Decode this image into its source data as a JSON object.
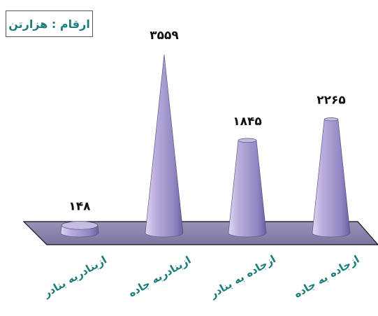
{
  "chart_data": {
    "type": "bar",
    "unit_label": "ارقام : هزارتن",
    "categories": [
      "ازبنادربه بنادر",
      "ازبنادربه جاده",
      "ازجاده به بنادر",
      "ازجاده به جاده"
    ],
    "values": [
      148,
      3559,
      1845,
      2265
    ],
    "value_labels": [
      "۱۴۸",
      "۳۵۵۹",
      "۱۸۴۵",
      "۲۲۶۵"
    ],
    "grid": false,
    "legend": "none",
    "colors": {
      "cone": "#b6a9d8",
      "cone_dark": "#6f62a0",
      "floor": "#8a80aa",
      "category_text": "#1d7d7a"
    }
  }
}
